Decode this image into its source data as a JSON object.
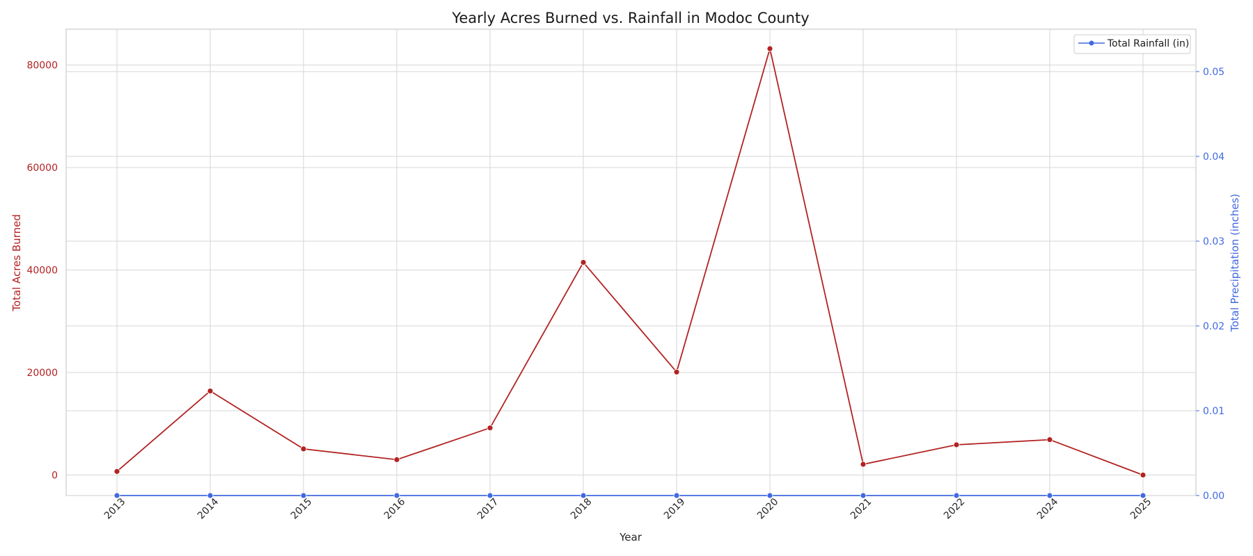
{
  "chart_data": {
    "type": "line",
    "title": "Yearly Acres Burned vs. Rainfall in Modoc County",
    "xlabel": "Year",
    "ylabel": "Total Acres Burned",
    "y2label": "Total Precipitation (inches)",
    "categories": [
      "2013",
      "2014",
      "2015",
      "2016",
      "2017",
      "2018",
      "2019",
      "2020",
      "2021",
      "2022",
      "2024",
      "2025"
    ],
    "ylim": [
      -4000,
      87000
    ],
    "y2lim": [
      0,
      0.055
    ],
    "yticks": [
      0,
      20000,
      40000,
      60000,
      80000
    ],
    "y2ticks": [
      0.0,
      0.01,
      0.02,
      0.03,
      0.04,
      0.05
    ],
    "y2tick_labels": [
      "0.00",
      "0.01",
      "0.02",
      "0.03",
      "0.04",
      "0.05"
    ],
    "grid": true,
    "legend_position": "top-right",
    "series": [
      {
        "name": "",
        "axis": "left",
        "color": "#b22222",
        "values": [
          700,
          16400,
          5100,
          3000,
          9200,
          41500,
          20100,
          83200,
          2100,
          5900,
          6900,
          0
        ]
      },
      {
        "name": "Total Rainfall (in)",
        "axis": "right",
        "color": "#4169e1",
        "values": [
          0,
          0,
          0,
          0,
          0,
          0,
          0,
          0,
          0,
          0,
          0,
          0
        ]
      }
    ]
  }
}
